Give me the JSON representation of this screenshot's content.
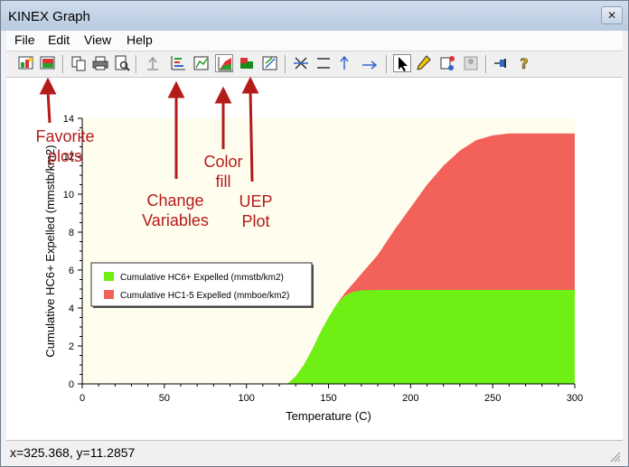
{
  "window": {
    "title": "KINEX Graph"
  },
  "menu": {
    "file": "File",
    "edit": "Edit",
    "view": "View",
    "help": "Help"
  },
  "status": {
    "coords": "x=325.368, y=11.2857"
  },
  "annotations": {
    "favorite": "Favorite plots",
    "change_vars": "Change Variables",
    "color_fill": "Color fill",
    "uep": "UEP Plot"
  },
  "colors": {
    "annotation": "#b41b1b",
    "plot_background": "#fffdee",
    "series_hc6": "#6ef014",
    "series_hc15": "#f2625b"
  },
  "chart_data": {
    "type": "area",
    "xlabel": "Temperature (C)",
    "ylabel": "Cumulative HC6+ Expelled (mmstb/km2)",
    "xlim": [
      0,
      300
    ],
    "ylim": [
      0,
      14
    ],
    "xticks": [
      0,
      50,
      100,
      150,
      200,
      250,
      300
    ],
    "yticks": [
      0,
      2,
      4,
      6,
      8,
      10,
      12,
      14
    ],
    "legend_position": "left",
    "grid": false,
    "series": [
      {
        "name": "Cumulative HC6+ Expelled (mmstb/km2)",
        "color": "#6ef014",
        "x": [
          0,
          125,
          130,
          135,
          140,
          145,
          150,
          155,
          160,
          165,
          170,
          180,
          200,
          250,
          300
        ],
        "y": [
          0,
          0,
          0.4,
          1.0,
          1.8,
          2.7,
          3.5,
          4.2,
          4.65,
          4.85,
          4.93,
          4.95,
          4.95,
          4.95,
          4.95
        ]
      },
      {
        "name": "Cumulative HC1-5 Expelled (mmboe/km2)",
        "color": "#f2625b",
        "x": [
          0,
          125,
          130,
          135,
          140,
          145,
          150,
          155,
          160,
          165,
          170,
          180,
          190,
          200,
          210,
          220,
          230,
          240,
          250,
          260,
          300
        ],
        "y": [
          0,
          0,
          0.4,
          1.0,
          1.8,
          2.7,
          3.5,
          4.2,
          4.8,
          5.3,
          5.8,
          6.8,
          8.1,
          9.3,
          10.5,
          11.5,
          12.3,
          12.85,
          13.1,
          13.2,
          13.2
        ]
      }
    ]
  }
}
